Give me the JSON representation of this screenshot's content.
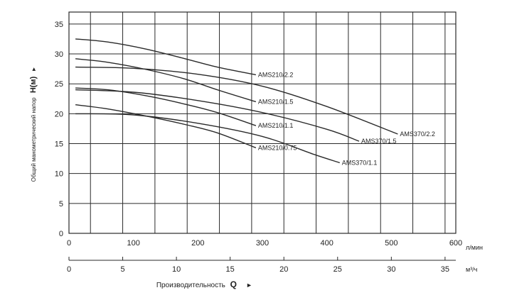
{
  "chart_data": {
    "type": "line",
    "ylabel_prefix": "Общий манометрический напор",
    "ylabel_symbol": "H(м)",
    "ylabel_arrow": "►",
    "xlabel_prefix": "Производительность",
    "xlabel_symbol": "Q",
    "xlabel_arrow": "►",
    "x_unit_primary": "л/мин",
    "x_unit_secondary": "м³/ч",
    "xlim": [
      0,
      600
    ],
    "x2lim": [
      0,
      36
    ],
    "ylim": [
      0,
      37
    ],
    "yticks": [
      "0",
      "5",
      "10",
      "15",
      "20",
      "25",
      "30",
      "35"
    ],
    "xticks": [
      "0",
      "100",
      "200",
      "300",
      "400",
      "500",
      "600"
    ],
    "x2ticks": [
      "0",
      "5",
      "10",
      "15",
      "20",
      "25",
      "30",
      "35"
    ],
    "grid": true,
    "series": [
      {
        "name": "AMS210/2.2",
        "x": [
          10,
          60,
          120,
          180,
          230,
          290
        ],
        "y": [
          32.5,
          32.0,
          30.8,
          29.2,
          27.8,
          26.5
        ]
      },
      {
        "name": "AMS210/1.5",
        "x": [
          10,
          60,
          120,
          180,
          230,
          290
        ],
        "y": [
          29.2,
          28.6,
          27.4,
          25.8,
          24.0,
          22.0
        ]
      },
      {
        "name": "AMS210/1.1",
        "x": [
          10,
          60,
          120,
          180,
          230,
          290
        ],
        "y": [
          24.3,
          24.0,
          23.0,
          21.6,
          20.2,
          18.0
        ]
      },
      {
        "name": "AMS210/0.75",
        "x": [
          10,
          60,
          120,
          180,
          230,
          290
        ],
        "y": [
          21.5,
          20.8,
          19.6,
          18.2,
          16.8,
          14.3
        ]
      },
      {
        "name": "AMS370/2.2",
        "x": [
          10,
          100,
          200,
          300,
          400,
          510
        ],
        "y": [
          27.8,
          27.6,
          26.6,
          24.6,
          21.2,
          16.6
        ]
      },
      {
        "name": "AMS370/1.5",
        "x": [
          10,
          100,
          200,
          300,
          400,
          450
        ],
        "y": [
          24.0,
          23.6,
          22.2,
          20.2,
          17.4,
          15.4
        ]
      },
      {
        "name": "AMS370/1.1",
        "x": [
          10,
          100,
          200,
          300,
          380,
          420
        ],
        "y": [
          20.0,
          19.8,
          18.4,
          16.2,
          13.2,
          11.8
        ]
      }
    ]
  }
}
